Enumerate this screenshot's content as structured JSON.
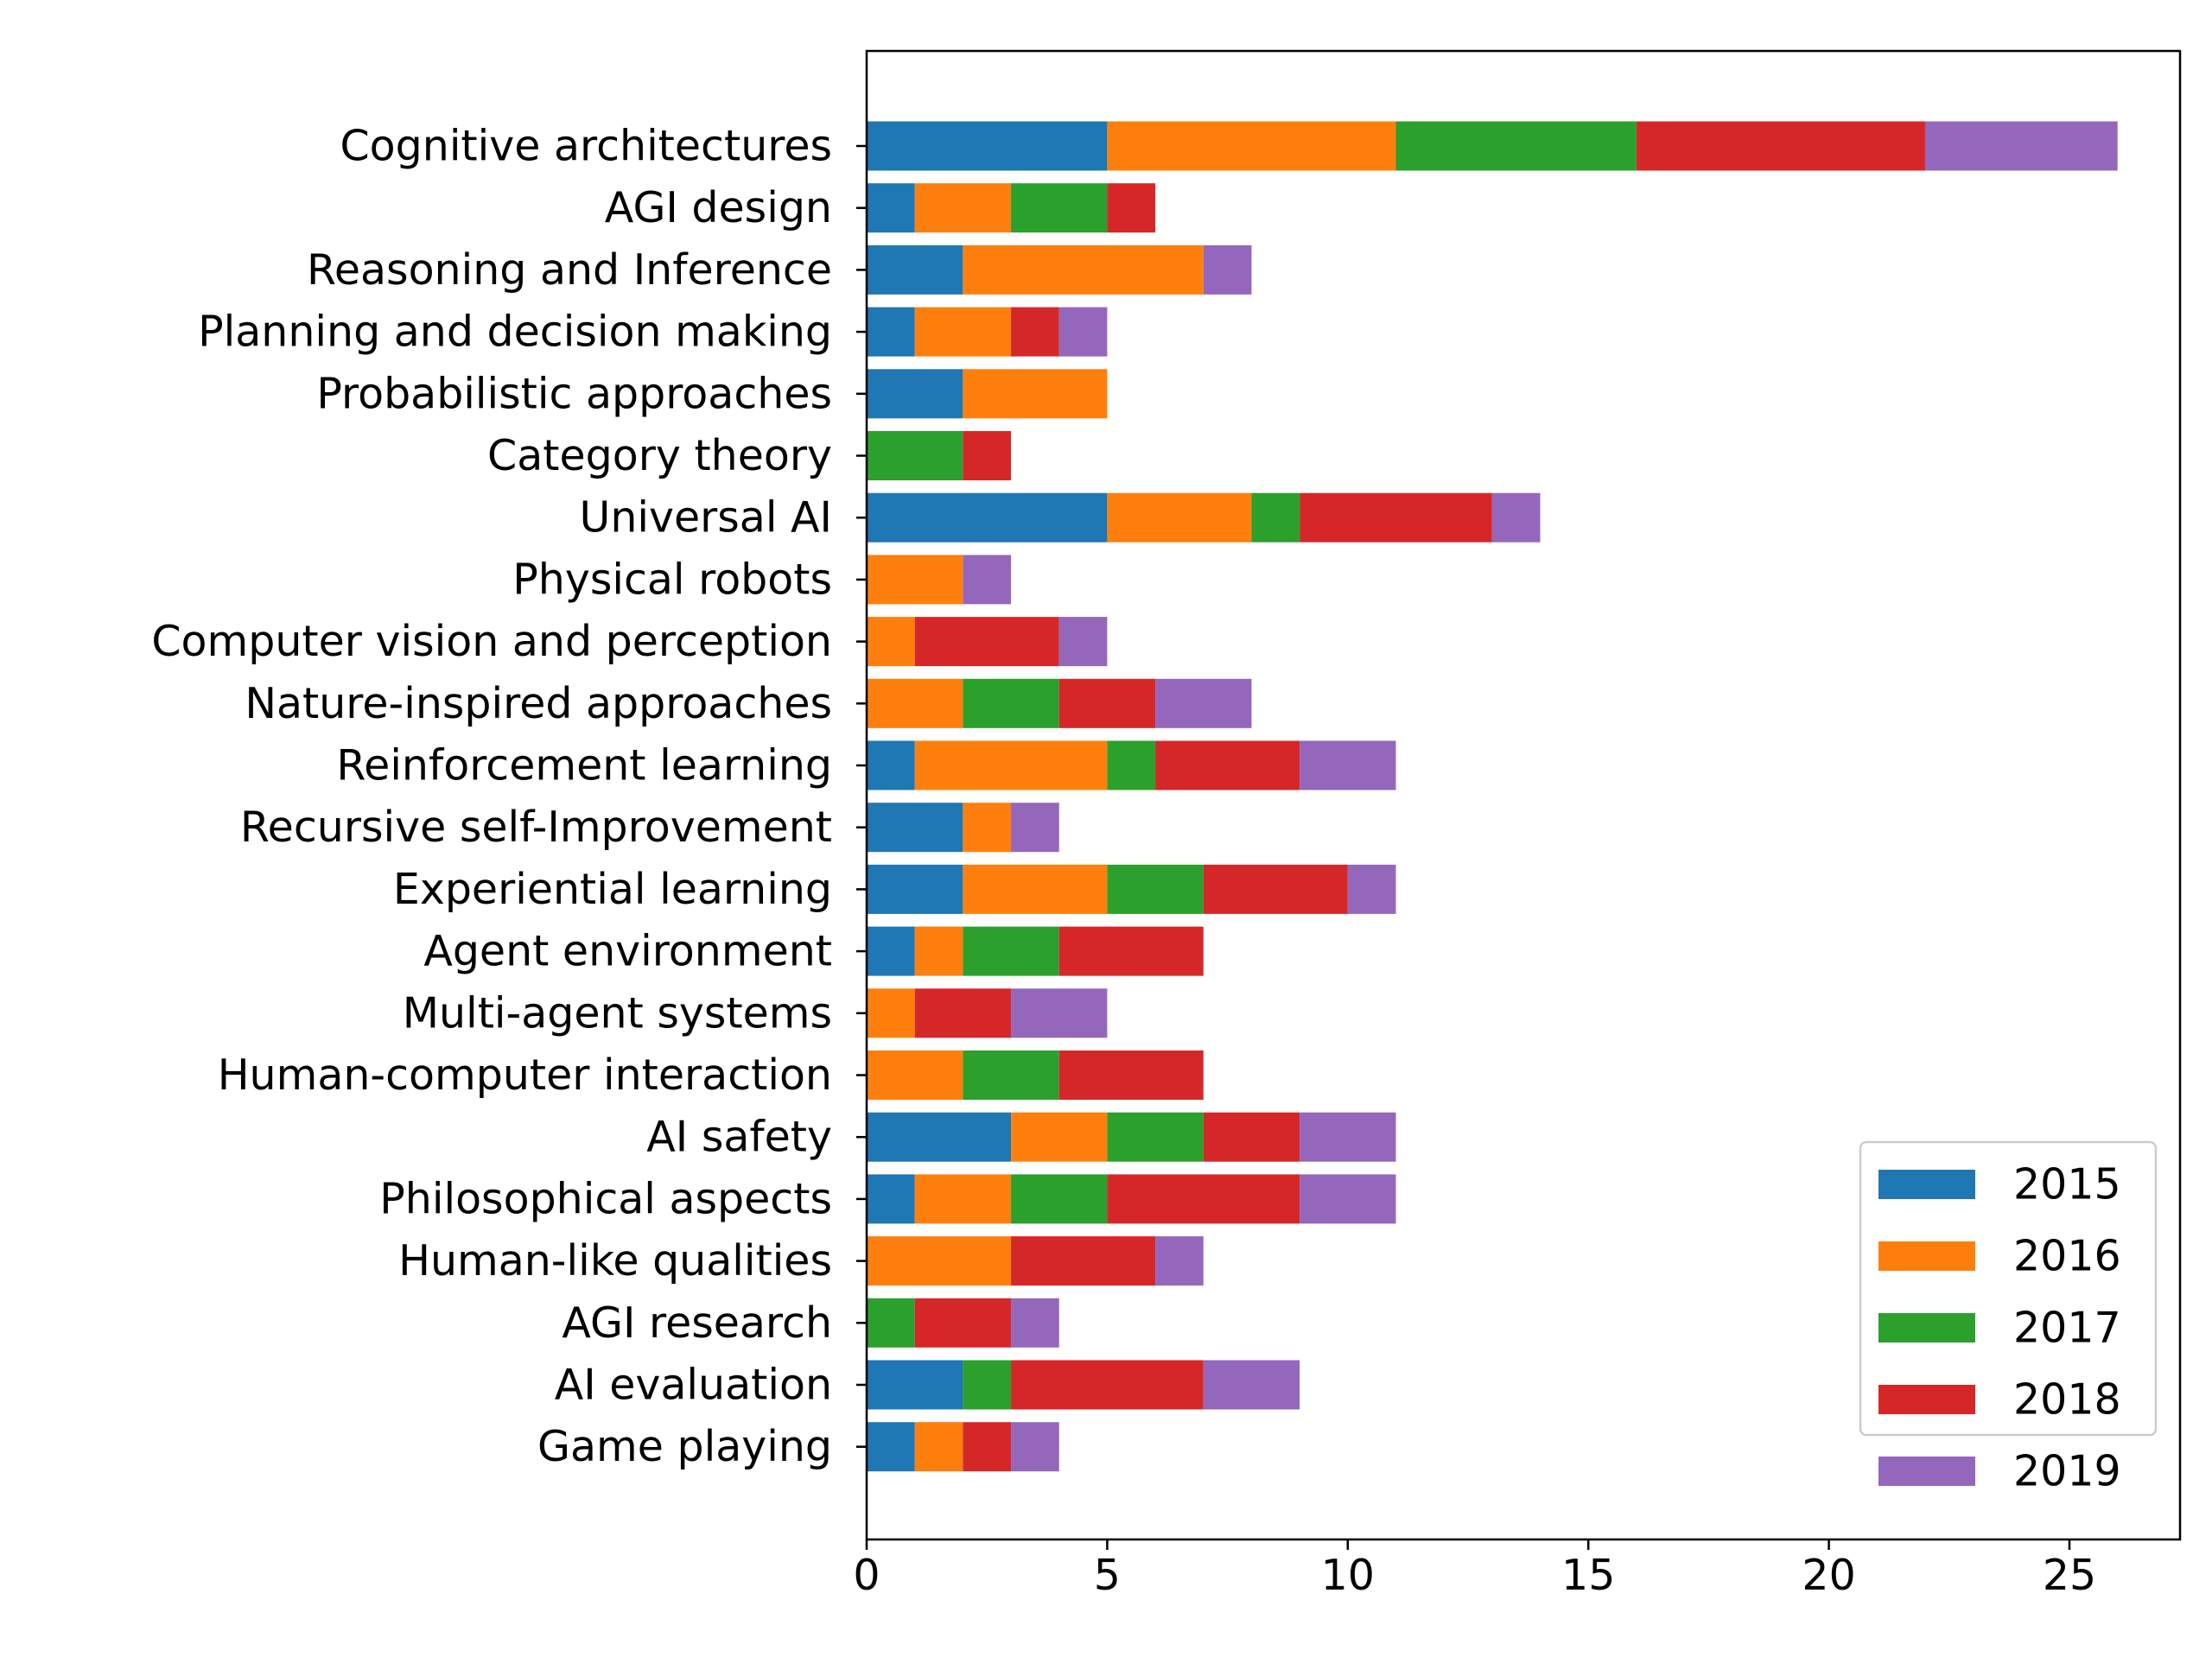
{
  "chart_data": {
    "type": "bar",
    "orientation": "horizontal",
    "stacked": true,
    "categories": [
      "Cognitive architectures",
      "AGI design",
      "Reasoning and Inference",
      "Planning and decision making",
      "Probabilistic approaches",
      "Category theory",
      "Universal AI",
      "Physical robots",
      "Computer vision and perception",
      "Nature-inspired approaches",
      "Reinforcement learning",
      "Recursive self-Improvement",
      "Experiential learning",
      "Agent environment",
      "Multi-agent systems",
      "Human-computer interaction",
      "AI safety",
      "Philosophical aspects",
      "Human-like qualities",
      "AGI research",
      "AI evaluation",
      "Game playing"
    ],
    "series": [
      {
        "name": "2015",
        "color": "#1f77b4",
        "values": [
          5,
          1,
          2,
          1,
          2,
          0,
          5,
          0,
          0,
          0,
          1,
          2,
          2,
          1,
          0,
          0,
          3,
          1,
          0,
          0,
          2,
          1
        ]
      },
      {
        "name": "2016",
        "color": "#ff7f0e",
        "values": [
          6,
          2,
          5,
          2,
          3,
          0,
          3,
          2,
          1,
          2,
          4,
          1,
          3,
          1,
          1,
          2,
          2,
          2,
          3,
          0,
          0,
          1
        ]
      },
      {
        "name": "2017",
        "color": "#2ca02c",
        "values": [
          5,
          2,
          0,
          0,
          0,
          2,
          1,
          0,
          0,
          2,
          1,
          0,
          2,
          2,
          0,
          2,
          2,
          2,
          0,
          1,
          1,
          0
        ]
      },
      {
        "name": "2018",
        "color": "#d62728",
        "values": [
          6,
          1,
          0,
          1,
          0,
          1,
          4,
          0,
          3,
          2,
          3,
          0,
          3,
          3,
          2,
          3,
          2,
          4,
          3,
          2,
          4,
          1
        ]
      },
      {
        "name": "2019",
        "color": "#9467bd",
        "values": [
          4,
          0,
          1,
          1,
          0,
          0,
          1,
          1,
          1,
          2,
          2,
          1,
          1,
          0,
          2,
          0,
          2,
          2,
          1,
          1,
          2,
          1
        ]
      }
    ],
    "xticks": [
      0,
      5,
      10,
      15,
      20,
      25
    ],
    "xlim": [
      0,
      27.3
    ],
    "legend_position": "lower-right",
    "grid": false
  }
}
